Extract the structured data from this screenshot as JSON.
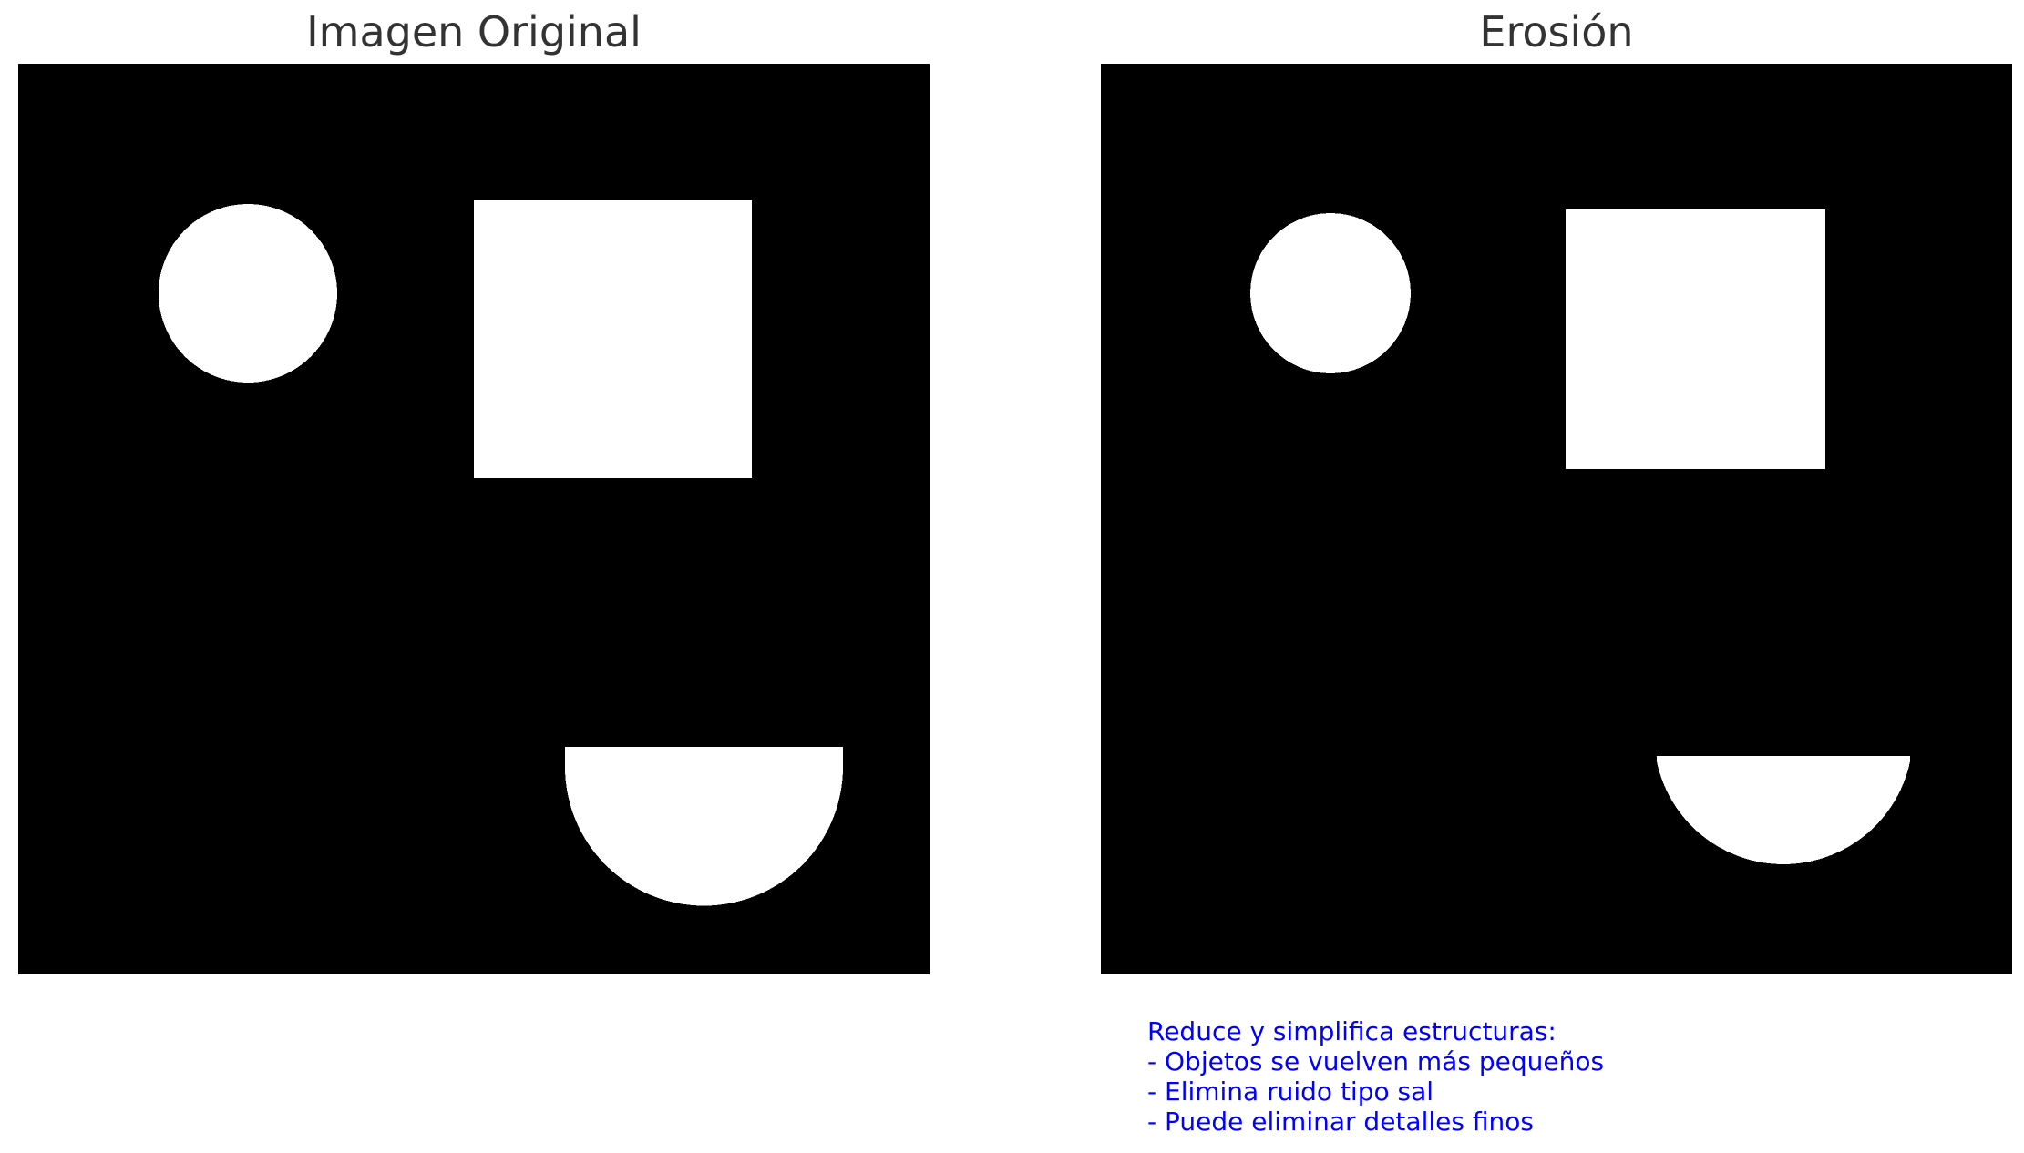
{
  "panels": [
    {
      "title": "Imagen Original"
    },
    {
      "title": "Erosión"
    }
  ],
  "note": {
    "heading": "Reduce y simplifica estructuras:",
    "lines": [
      "- Objetos se vuelven más pequeños",
      "- Elimina ruido tipo sal",
      "- Puede eliminar detalles finos"
    ],
    "color": "#0000ff"
  },
  "colors": {
    "background": "#000000",
    "shapes": "#ffffff",
    "title": "#333333"
  }
}
